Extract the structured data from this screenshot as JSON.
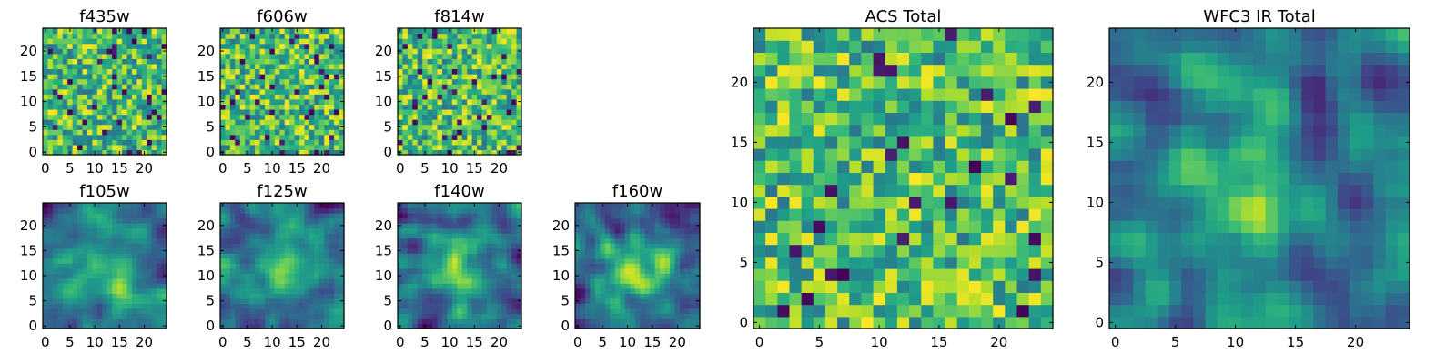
{
  "chart_data": {
    "type": "heatmap",
    "colormap": "viridis",
    "panels": [
      {
        "title": "f435w",
        "xlim": [
          0,
          24
        ],
        "ylim": [
          0,
          24
        ],
        "xticks": [
          0,
          5,
          10,
          15,
          20
        ],
        "yticks": [
          0,
          5,
          10,
          15,
          20
        ],
        "pattern": "noise",
        "seed": 11
      },
      {
        "title": "f606w",
        "xlim": [
          0,
          24
        ],
        "ylim": [
          0,
          24
        ],
        "xticks": [
          0,
          5,
          10,
          15,
          20
        ],
        "yticks": [
          0,
          5,
          10,
          15,
          20
        ],
        "pattern": "noise",
        "seed": 23
      },
      {
        "title": "f814w",
        "xlim": [
          0,
          24
        ],
        "ylim": [
          0,
          24
        ],
        "xticks": [
          0,
          5,
          10,
          15,
          20
        ],
        "yticks": [
          0,
          5,
          10,
          15,
          20
        ],
        "pattern": "noise",
        "seed": 37
      },
      {
        "title": "f105w",
        "xlim": [
          0,
          24
        ],
        "ylim": [
          0,
          24
        ],
        "xticks": [
          0,
          5,
          10,
          15,
          20
        ],
        "yticks": [
          0,
          5,
          10,
          15,
          20
        ],
        "pattern": "smooth",
        "seed": 41
      },
      {
        "title": "f125w",
        "xlim": [
          0,
          24
        ],
        "ylim": [
          0,
          24
        ],
        "xticks": [
          0,
          5,
          10,
          15,
          20
        ],
        "yticks": [
          0,
          5,
          10,
          15,
          20
        ],
        "pattern": "smooth",
        "seed": 53
      },
      {
        "title": "f140w",
        "xlim": [
          0,
          24
        ],
        "ylim": [
          0,
          24
        ],
        "xticks": [
          0,
          5,
          10,
          15,
          20
        ],
        "yticks": [
          0,
          5,
          10,
          15,
          20
        ],
        "pattern": "smooth",
        "seed": 67
      },
      {
        "title": "f160w",
        "xlim": [
          0,
          24
        ],
        "ylim": [
          0,
          24
        ],
        "xticks": [
          0,
          5,
          10,
          15,
          20
        ],
        "yticks": [
          0,
          5,
          10,
          15,
          20
        ],
        "pattern": "smooth",
        "seed": 71
      },
      {
        "title": "ACS Total",
        "xlim": [
          0,
          24
        ],
        "ylim": [
          0,
          24
        ],
        "xticks": [
          0,
          5,
          10,
          15,
          20
        ],
        "yticks": [
          0,
          5,
          10,
          15,
          20
        ],
        "pattern": "noise",
        "seed": 83
      },
      {
        "title": "WFC3 IR Total",
        "xlim": [
          0,
          24
        ],
        "ylim": [
          0,
          24
        ],
        "xticks": [
          0,
          5,
          10,
          15,
          20
        ],
        "yticks": [
          0,
          5,
          10,
          15,
          20
        ],
        "pattern": "smooth",
        "seed": 97
      }
    ]
  }
}
